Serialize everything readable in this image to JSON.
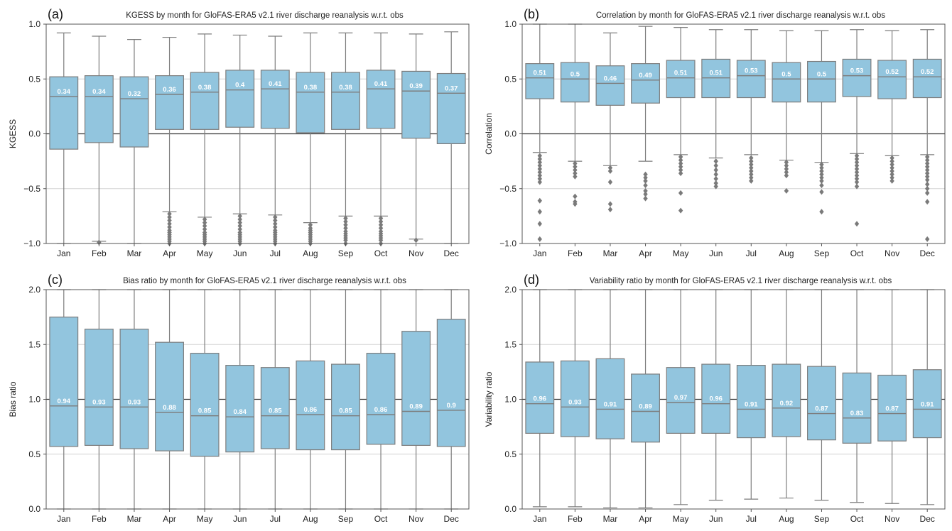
{
  "colors": {
    "box_fill": "#92c5de",
    "box_edge": "#7d7d7d",
    "grid": "#d4d4d4",
    "reference_line": "#333333",
    "median_label": "#ffffff"
  },
  "chart_data": [
    {
      "panel_label": "(a)",
      "type": "box",
      "title": "KGESS by month for GloFAS-ERA5 v2.1 river discharge reanalysis w.r.t. obs",
      "xlabel": "",
      "ylabel": "KGESS",
      "ylim": [
        -1.0,
        1.0
      ],
      "yticks": [
        -1.0,
        -0.5,
        0.0,
        0.5,
        1.0
      ],
      "ytick_labels": [
        "−1.0",
        "−0.5",
        "0.0",
        "0.5",
        "1.0"
      ],
      "reference_line": 0.0,
      "grid": "horizontal",
      "categories": [
        "Jan",
        "Feb",
        "Mar",
        "Apr",
        "May",
        "Jun",
        "Jul",
        "Aug",
        "Sep",
        "Oct",
        "Nov",
        "Dec"
      ],
      "boxes": [
        {
          "whisker_low": -1.0,
          "q1": -0.14,
          "median": 0.34,
          "q3": 0.52,
          "whisker_high": 0.92,
          "median_label": "0.34",
          "outliers": []
        },
        {
          "whisker_low": -0.98,
          "q1": -0.08,
          "median": 0.34,
          "q3": 0.53,
          "whisker_high": 0.89,
          "median_label": "0.34",
          "outliers": [
            -0.99
          ]
        },
        {
          "whisker_low": -1.0,
          "q1": -0.12,
          "median": 0.32,
          "q3": 0.52,
          "whisker_high": 0.86,
          "median_label": "0.32",
          "outliers": []
        },
        {
          "whisker_low": -0.71,
          "q1": 0.04,
          "median": 0.36,
          "q3": 0.53,
          "whisker_high": 0.88,
          "median_label": "0.36",
          "outliers": [
            -0.73,
            -0.76,
            -0.79,
            -0.82,
            -0.85,
            -0.88,
            -0.9,
            -0.92,
            -0.94,
            -0.96,
            -0.98,
            -1.0
          ]
        },
        {
          "whisker_low": -0.76,
          "q1": 0.04,
          "median": 0.38,
          "q3": 0.56,
          "whisker_high": 0.91,
          "median_label": "0.38",
          "outliers": [
            -0.78,
            -0.81,
            -0.84,
            -0.87,
            -0.9,
            -0.92,
            -0.94,
            -0.96,
            -0.98,
            -1.0
          ]
        },
        {
          "whisker_low": -0.73,
          "q1": 0.06,
          "median": 0.4,
          "q3": 0.58,
          "whisker_high": 0.9,
          "median_label": "0.4",
          "outliers": [
            -0.75,
            -0.78,
            -0.81,
            -0.84,
            -0.87,
            -0.9,
            -0.92,
            -0.94,
            -0.96,
            -0.98,
            -1.0
          ]
        },
        {
          "whisker_low": -0.74,
          "q1": 0.05,
          "median": 0.41,
          "q3": 0.58,
          "whisker_high": 0.89,
          "median_label": "0.41",
          "outliers": [
            -0.76,
            -0.79,
            -0.82,
            -0.85,
            -0.88,
            -0.9,
            -0.92,
            -0.94,
            -0.96,
            -0.98,
            -1.0
          ]
        },
        {
          "whisker_low": -0.81,
          "q1": 0.01,
          "median": 0.38,
          "q3": 0.56,
          "whisker_high": 0.92,
          "median_label": "0.38",
          "outliers": [
            -0.83,
            -0.86,
            -0.88,
            -0.9,
            -0.92,
            -0.94,
            -0.96,
            -0.98,
            -1.0
          ]
        },
        {
          "whisker_low": -0.75,
          "q1": 0.04,
          "median": 0.38,
          "q3": 0.56,
          "whisker_high": 0.92,
          "median_label": "0.38",
          "outliers": [
            -0.77,
            -0.8,
            -0.83,
            -0.86,
            -0.89,
            -0.91,
            -0.93,
            -0.95,
            -0.97,
            -1.0
          ]
        },
        {
          "whisker_low": -0.75,
          "q1": 0.05,
          "median": 0.41,
          "q3": 0.58,
          "whisker_high": 0.92,
          "median_label": "0.41",
          "outliers": [
            -0.77,
            -0.8,
            -0.83,
            -0.86,
            -0.89,
            -0.91,
            -0.93,
            -0.95,
            -0.97,
            -1.0
          ]
        },
        {
          "whisker_low": -0.96,
          "q1": -0.04,
          "median": 0.39,
          "q3": 0.57,
          "whisker_high": 0.91,
          "median_label": "0.39",
          "outliers": [
            -0.97
          ]
        },
        {
          "whisker_low": -1.0,
          "q1": -0.09,
          "median": 0.37,
          "q3": 0.55,
          "whisker_high": 0.93,
          "median_label": "0.37",
          "outliers": []
        }
      ]
    },
    {
      "panel_label": "(b)",
      "type": "box",
      "title": "Correlation by month for GloFAS-ERA5 v2.1 river discharge reanalysis w.r.t. obs",
      "xlabel": "",
      "ylabel": "Correlation",
      "ylim": [
        -1.0,
        1.0
      ],
      "yticks": [
        -1.0,
        -0.5,
        0.0,
        0.5,
        1.0
      ],
      "ytick_labels": [
        "−1.0",
        "−0.5",
        "0.0",
        "0.5",
        "1.0"
      ],
      "reference_line": 0.0,
      "grid": "horizontal",
      "categories": [
        "Jan",
        "Feb",
        "Mar",
        "Apr",
        "May",
        "Jun",
        "Jul",
        "Aug",
        "Sep",
        "Oct",
        "Nov",
        "Dec"
      ],
      "boxes": [
        {
          "whisker_low": -0.17,
          "q1": 0.32,
          "median": 0.51,
          "q3": 0.64,
          "whisker_high": 1.0,
          "median_label": "0.51",
          "outliers": [
            -0.2,
            -0.23,
            -0.26,
            -0.29,
            -0.32,
            -0.35,
            -0.38,
            -0.41,
            -0.44,
            -0.61,
            -0.71,
            -0.82,
            -0.96
          ]
        },
        {
          "whisker_low": -0.25,
          "q1": 0.29,
          "median": 0.5,
          "q3": 0.65,
          "whisker_high": 1.0,
          "median_label": "0.5",
          "outliers": [
            -0.27,
            -0.3,
            -0.33,
            -0.36,
            -0.39,
            -0.57,
            -0.62,
            -0.64
          ]
        },
        {
          "whisker_low": -0.29,
          "q1": 0.26,
          "median": 0.46,
          "q3": 0.62,
          "whisker_high": 0.92,
          "median_label": "0.46",
          "outliers": [
            -0.31,
            -0.34,
            -0.44,
            -0.64,
            -0.69
          ]
        },
        {
          "whisker_low": -0.25,
          "q1": 0.28,
          "median": 0.49,
          "q3": 0.64,
          "whisker_high": 0.98,
          "median_label": "0.49",
          "outliers": [
            -0.37,
            -0.4,
            -0.43,
            -0.47,
            -0.52,
            -0.55,
            -0.59
          ]
        },
        {
          "whisker_low": -0.19,
          "q1": 0.33,
          "median": 0.51,
          "q3": 0.67,
          "whisker_high": 0.97,
          "median_label": "0.51",
          "outliers": [
            -0.21,
            -0.24,
            -0.27,
            -0.3,
            -0.33,
            -0.36,
            -0.54,
            -0.7
          ]
        },
        {
          "whisker_low": -0.22,
          "q1": 0.33,
          "median": 0.51,
          "q3": 0.68,
          "whisker_high": 0.95,
          "median_label": "0.51",
          "outliers": [
            -0.25,
            -0.29,
            -0.33,
            -0.37,
            -0.41,
            -0.45,
            -0.48
          ]
        },
        {
          "whisker_low": -0.19,
          "q1": 0.33,
          "median": 0.53,
          "q3": 0.67,
          "whisker_high": 0.95,
          "median_label": "0.53",
          "outliers": [
            -0.22,
            -0.25,
            -0.28,
            -0.31,
            -0.34,
            -0.37,
            -0.4,
            -0.43
          ]
        },
        {
          "whisker_low": -0.24,
          "q1": 0.29,
          "median": 0.5,
          "q3": 0.65,
          "whisker_high": 0.94,
          "median_label": "0.5",
          "outliers": [
            -0.26,
            -0.29,
            -0.32,
            -0.35,
            -0.38,
            -0.52
          ]
        },
        {
          "whisker_low": -0.26,
          "q1": 0.29,
          "median": 0.5,
          "q3": 0.66,
          "whisker_high": 0.94,
          "median_label": "0.5",
          "outliers": [
            -0.28,
            -0.31,
            -0.34,
            -0.37,
            -0.4,
            -0.43,
            -0.47,
            -0.53,
            -0.71
          ]
        },
        {
          "whisker_low": -0.18,
          "q1": 0.34,
          "median": 0.53,
          "q3": 0.68,
          "whisker_high": 0.95,
          "median_label": "0.53",
          "outliers": [
            -0.2,
            -0.23,
            -0.26,
            -0.29,
            -0.32,
            -0.35,
            -0.38,
            -0.41,
            -0.44,
            -0.48,
            -0.82
          ]
        },
        {
          "whisker_low": -0.2,
          "q1": 0.32,
          "median": 0.52,
          "q3": 0.67,
          "whisker_high": 0.94,
          "median_label": "0.52",
          "outliers": [
            -0.22,
            -0.25,
            -0.28,
            -0.31,
            -0.34,
            -0.37,
            -0.4,
            -0.43
          ]
        },
        {
          "whisker_low": -0.19,
          "q1": 0.33,
          "median": 0.52,
          "q3": 0.68,
          "whisker_high": 0.95,
          "median_label": "0.52",
          "outliers": [
            -0.21,
            -0.24,
            -0.27,
            -0.3,
            -0.33,
            -0.36,
            -0.39,
            -0.42,
            -0.46,
            -0.5,
            -0.54,
            -0.62,
            -0.96
          ]
        }
      ]
    },
    {
      "panel_label": "(c)",
      "type": "box",
      "title": "Bias ratio by month for GloFAS-ERA5 v2.1 river discharge reanalysis w.r.t. obs",
      "xlabel": "",
      "ylabel": "Bias ratio",
      "ylim": [
        0.0,
        2.0
      ],
      "yticks": [
        0.0,
        0.5,
        1.0,
        1.5,
        2.0
      ],
      "ytick_labels": [
        "0.0",
        "0.5",
        "1.0",
        "1.5",
        "2.0"
      ],
      "reference_line": 1.0,
      "grid": "horizontal",
      "categories": [
        "Jan",
        "Feb",
        "Mar",
        "Apr",
        "May",
        "Jun",
        "Jul",
        "Aug",
        "Sep",
        "Oct",
        "Nov",
        "Dec"
      ],
      "boxes": [
        {
          "whisker_low": 0.0,
          "q1": 0.57,
          "median": 0.94,
          "q3": 1.75,
          "whisker_high": 2.0,
          "median_label": "0.94",
          "outliers": []
        },
        {
          "whisker_low": 0.0,
          "q1": 0.58,
          "median": 0.93,
          "q3": 1.64,
          "whisker_high": 2.0,
          "median_label": "0.93",
          "outliers": []
        },
        {
          "whisker_low": 0.0,
          "q1": 0.55,
          "median": 0.93,
          "q3": 1.64,
          "whisker_high": 2.0,
          "median_label": "0.93",
          "outliers": []
        },
        {
          "whisker_low": 0.0,
          "q1": 0.53,
          "median": 0.88,
          "q3": 1.52,
          "whisker_high": 2.0,
          "median_label": "0.88",
          "outliers": []
        },
        {
          "whisker_low": 0.0,
          "q1": 0.48,
          "median": 0.85,
          "q3": 1.42,
          "whisker_high": 2.0,
          "median_label": "0.85",
          "outliers": []
        },
        {
          "whisker_low": 0.0,
          "q1": 0.52,
          "median": 0.84,
          "q3": 1.31,
          "whisker_high": 2.0,
          "median_label": "0.84",
          "outliers": []
        },
        {
          "whisker_low": 0.0,
          "q1": 0.55,
          "median": 0.85,
          "q3": 1.29,
          "whisker_high": 2.0,
          "median_label": "0.85",
          "outliers": []
        },
        {
          "whisker_low": 0.0,
          "q1": 0.54,
          "median": 0.86,
          "q3": 1.35,
          "whisker_high": 2.0,
          "median_label": "0.86",
          "outliers": []
        },
        {
          "whisker_low": 0.0,
          "q1": 0.54,
          "median": 0.85,
          "q3": 1.32,
          "whisker_high": 2.0,
          "median_label": "0.85",
          "outliers": []
        },
        {
          "whisker_low": 0.0,
          "q1": 0.59,
          "median": 0.86,
          "q3": 1.42,
          "whisker_high": 2.0,
          "median_label": "0.86",
          "outliers": []
        },
        {
          "whisker_low": 0.0,
          "q1": 0.58,
          "median": 0.89,
          "q3": 1.62,
          "whisker_high": 2.0,
          "median_label": "0.89",
          "outliers": []
        },
        {
          "whisker_low": 0.0,
          "q1": 0.57,
          "median": 0.9,
          "q3": 1.73,
          "whisker_high": 2.0,
          "median_label": "0.9",
          "outliers": []
        }
      ]
    },
    {
      "panel_label": "(d)",
      "type": "box",
      "title": "Variability ratio by month for GloFAS-ERA5 v2.1 river discharge reanalysis w.r.t. obs",
      "xlabel": "",
      "ylabel": "Variability ratio",
      "ylim": [
        0.0,
        2.0
      ],
      "yticks": [
        0.0,
        0.5,
        1.0,
        1.5,
        2.0
      ],
      "ytick_labels": [
        "0.0",
        "0.5",
        "1.0",
        "1.5",
        "2.0"
      ],
      "reference_line": 1.0,
      "grid": "horizontal",
      "categories": [
        "Jan",
        "Feb",
        "Mar",
        "Apr",
        "May",
        "Jun",
        "Jul",
        "Aug",
        "Sep",
        "Oct",
        "Nov",
        "Dec"
      ],
      "boxes": [
        {
          "whisker_low": 0.02,
          "q1": 0.69,
          "median": 0.96,
          "q3": 1.34,
          "whisker_high": 2.0,
          "median_label": "0.96",
          "outliers": []
        },
        {
          "whisker_low": 0.02,
          "q1": 0.66,
          "median": 0.93,
          "q3": 1.35,
          "whisker_high": 2.0,
          "median_label": "0.93",
          "outliers": []
        },
        {
          "whisker_low": 0.01,
          "q1": 0.64,
          "median": 0.91,
          "q3": 1.37,
          "whisker_high": 2.0,
          "median_label": "0.91",
          "outliers": []
        },
        {
          "whisker_low": 0.01,
          "q1": 0.61,
          "median": 0.89,
          "q3": 1.23,
          "whisker_high": 2.0,
          "median_label": "0.89",
          "outliers": []
        },
        {
          "whisker_low": 0.04,
          "q1": 0.69,
          "median": 0.97,
          "q3": 1.29,
          "whisker_high": 2.0,
          "median_label": "0.97",
          "outliers": []
        },
        {
          "whisker_low": 0.08,
          "q1": 0.69,
          "median": 0.96,
          "q3": 1.32,
          "whisker_high": 2.0,
          "median_label": "0.96",
          "outliers": []
        },
        {
          "whisker_low": 0.09,
          "q1": 0.65,
          "median": 0.91,
          "q3": 1.31,
          "whisker_high": 2.0,
          "median_label": "0.91",
          "outliers": []
        },
        {
          "whisker_low": 0.1,
          "q1": 0.66,
          "median": 0.92,
          "q3": 1.32,
          "whisker_high": 2.0,
          "median_label": "0.92",
          "outliers": []
        },
        {
          "whisker_low": 0.08,
          "q1": 0.63,
          "median": 0.87,
          "q3": 1.3,
          "whisker_high": 2.0,
          "median_label": "0.87",
          "outliers": []
        },
        {
          "whisker_low": 0.06,
          "q1": 0.6,
          "median": 0.83,
          "q3": 1.24,
          "whisker_high": 2.0,
          "median_label": "0.83",
          "outliers": []
        },
        {
          "whisker_low": 0.05,
          "q1": 0.62,
          "median": 0.87,
          "q3": 1.22,
          "whisker_high": 2.0,
          "median_label": "0.87",
          "outliers": []
        },
        {
          "whisker_low": 0.04,
          "q1": 0.65,
          "median": 0.91,
          "q3": 1.27,
          "whisker_high": 2.0,
          "median_label": "0.91",
          "outliers": []
        }
      ]
    }
  ]
}
